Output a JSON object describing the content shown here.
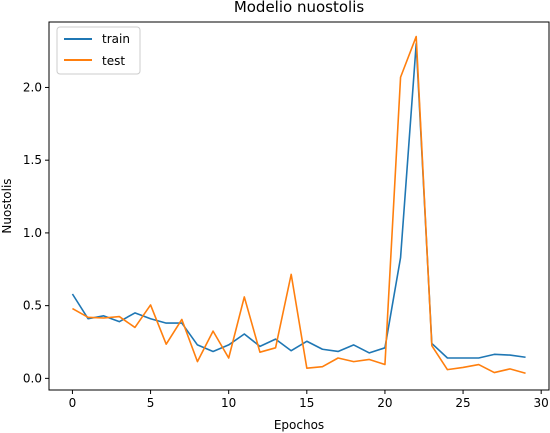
{
  "chart_data": {
    "type": "line",
    "title": "Modelio nuostolis",
    "xlabel": "Epochos",
    "ylabel": "Nuostolis",
    "xlim": [
      -1.5,
      30.5
    ],
    "ylim": [
      -0.08,
      2.45
    ],
    "xticks": [
      0,
      5,
      10,
      15,
      20,
      25,
      30
    ],
    "yticks": [
      0.0,
      0.5,
      1.0,
      1.5,
      2.0
    ],
    "xtick_labels": [
      "0",
      "5",
      "10",
      "15",
      "20",
      "25",
      "30"
    ],
    "ytick_labels": [
      "0.0",
      "0.5",
      "1.0",
      "1.5",
      "2.0"
    ],
    "grid": false,
    "legend_position": "top-left",
    "x": [
      0,
      1,
      2,
      3,
      4,
      5,
      6,
      7,
      8,
      9,
      10,
      11,
      12,
      13,
      14,
      15,
      16,
      17,
      18,
      19,
      20,
      21,
      22,
      23,
      24,
      25,
      26,
      27,
      28,
      29
    ],
    "series": [
      {
        "name": "train",
        "color": "#1f77b4",
        "values": [
          0.58,
          0.41,
          0.43,
          0.39,
          0.45,
          0.41,
          0.38,
          0.38,
          0.23,
          0.185,
          0.23,
          0.305,
          0.22,
          0.27,
          0.19,
          0.255,
          0.2,
          0.185,
          0.23,
          0.175,
          0.21,
          0.83,
          2.3,
          0.24,
          0.14,
          0.14,
          0.14,
          0.165,
          0.16,
          0.145
        ]
      },
      {
        "name": "test",
        "color": "#ff7f0e",
        "values": [
          0.48,
          0.42,
          0.415,
          0.425,
          0.35,
          0.505,
          0.235,
          0.405,
          0.115,
          0.325,
          0.14,
          0.56,
          0.18,
          0.21,
          0.715,
          0.07,
          0.08,
          0.14,
          0.115,
          0.13,
          0.095,
          2.07,
          2.35,
          0.225,
          0.06,
          0.075,
          0.095,
          0.04,
          0.065,
          0.035
        ]
      }
    ]
  }
}
